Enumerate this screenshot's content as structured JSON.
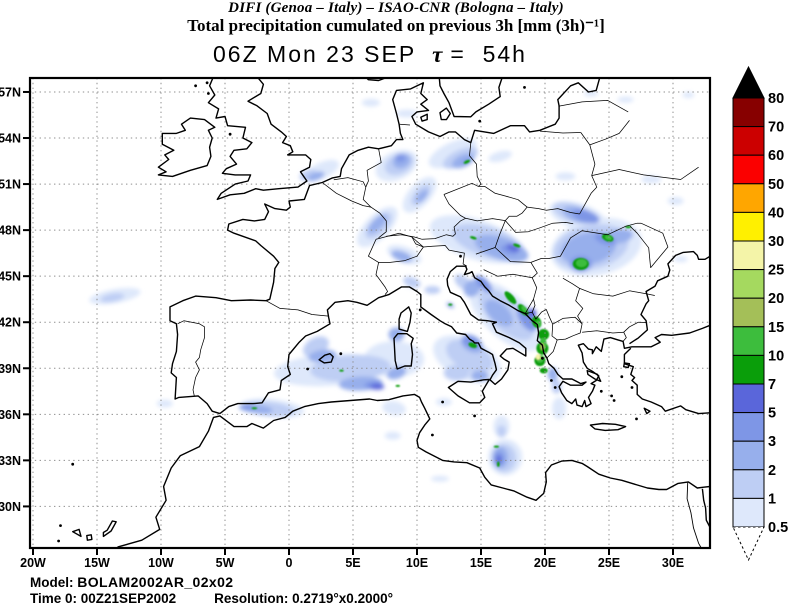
{
  "header": {
    "line1": "DIFI (Genoa – Italy)  –  ISAO-CNR (Bologna – Italy)",
    "line2": "Total precipitation cumulated on previous 3h [mm (3h)⁻¹]"
  },
  "title": {
    "datetime": "06Z Mon 23 SEP",
    "tau": "τ",
    "lead": "=  54h"
  },
  "footer": {
    "model_label": "Model: ",
    "model_value": "BOLAM2002AR_02x02",
    "time_label": "Time 0: ",
    "time_value": "00Z21SEP2002",
    "resolution_label": "Resolution: ",
    "resolution_value": "0.2719°x0.2000°"
  },
  "map": {
    "lat_ticks": [
      {
        "label": "57N",
        "lat": 57
      },
      {
        "label": "54N",
        "lat": 54
      },
      {
        "label": "51N",
        "lat": 51
      },
      {
        "label": "48N",
        "lat": 48
      },
      {
        "label": "45N",
        "lat": 45
      },
      {
        "label": "42N",
        "lat": 42
      },
      {
        "label": "39N",
        "lat": 39
      },
      {
        "label": "36N",
        "lat": 36
      },
      {
        "label": "33N",
        "lat": 33
      },
      {
        "label": "30N",
        "lat": 30
      }
    ],
    "lon_ticks": [
      {
        "label": "20W",
        "lon": -20
      },
      {
        "label": "15W",
        "lon": -15
      },
      {
        "label": "10W",
        "lon": -10
      },
      {
        "label": "5W",
        "lon": -5
      },
      {
        "label": "0",
        "lon": 0
      },
      {
        "label": "5E",
        "lon": 5
      },
      {
        "label": "10E",
        "lon": 10
      },
      {
        "label": "15E",
        "lon": 15
      },
      {
        "label": "20E",
        "lon": 20
      },
      {
        "label": "25E",
        "lon": 25
      },
      {
        "label": "30E",
        "lon": 30
      }
    ]
  },
  "colorbar": {
    "tick_labels": [
      "80",
      "70",
      "60",
      "50",
      "40",
      "30",
      "25",
      "20",
      "15",
      "10",
      "7",
      "5",
      "3",
      "2",
      "1",
      "0.5"
    ],
    "bands": [
      {
        "min": "70",
        "color": "#870000"
      },
      {
        "min": "60",
        "color": "#CC0000"
      },
      {
        "min": "50",
        "color": "#FB0000"
      },
      {
        "min": "40",
        "color": "#FFA600"
      },
      {
        "min": "30",
        "color": "#FFF000"
      },
      {
        "min": "25",
        "color": "#F4F4A8"
      },
      {
        "min": "20",
        "color": "#A5D95F"
      },
      {
        "min": "15",
        "color": "#A4BF58"
      },
      {
        "min": "10",
        "color": "#3DBD3D"
      },
      {
        "min": "7",
        "color": "#0A9E0A"
      },
      {
        "min": "5",
        "color": "#5A66DA"
      },
      {
        "min": "3",
        "color": "#7E96E6"
      },
      {
        "min": "2",
        "color": "#97AFEC"
      },
      {
        "min": "1",
        "color": "#BECEF4"
      },
      {
        "min": "0.5",
        "color": "#DEE8FB"
      }
    ],
    "above_color": "#000000",
    "below_color": "#FFFFFF"
  },
  "chart_data": {
    "type": "heatmap",
    "title": "06Z Mon 23 SEP  τ = 54h",
    "field": "Total precipitation cumulated on previous 3h",
    "units": "mm (3h)⁻¹",
    "model": "BOLAM2002AR_02x02",
    "init_time": "00Z21SEP2002",
    "valid_time": "06Z Mon 23 SEP",
    "lead_hours": 54,
    "resolution": "0.2719°x0.2000°",
    "extent": {
      "lon_min": -20,
      "lon_max": 32.9,
      "lat_min": 27.3,
      "lat_max": 57.9
    },
    "grid": {
      "lon_step_deg": 5,
      "lat_step_deg": 3,
      "style": "dotted"
    },
    "scale_levels_mm": [
      0.5,
      1,
      2,
      3,
      5,
      7,
      10,
      15,
      20,
      25,
      30,
      40,
      50,
      60,
      70,
      80
    ],
    "feature_format": [
      "lon",
      "lat",
      "rx_px",
      "ry_px",
      "rot_deg",
      "level_min_mm"
    ],
    "features": [
      [
        -13.6,
        43.7,
        26,
        7,
        -10,
        "0.5"
      ],
      [
        2.6,
        51.9,
        18,
        8,
        -25,
        "0.5"
      ],
      [
        8.4,
        52.2,
        22,
        14,
        -25,
        "0.5"
      ],
      [
        6.4,
        56.3,
        9,
        4,
        0,
        "0.5"
      ],
      [
        9.2,
        55.6,
        11,
        4,
        0,
        "0.5"
      ],
      [
        12.8,
        53.0,
        26,
        11,
        -25,
        "0.5"
      ],
      [
        16.5,
        52.8,
        12,
        5,
        -15,
        "0.5"
      ],
      [
        10.2,
        50.3,
        22,
        11,
        -48,
        "0.5"
      ],
      [
        6.9,
        48.2,
        26,
        12,
        -45,
        "0.5"
      ],
      [
        9.0,
        46.4,
        18,
        8,
        20,
        "0.5"
      ],
      [
        14.6,
        47.4,
        48,
        20,
        18,
        "0.5"
      ],
      [
        22.6,
        48.9,
        30,
        13,
        18,
        "0.5"
      ],
      [
        24.0,
        46.9,
        46,
        28,
        -12,
        "0.5"
      ],
      [
        28.3,
        51.3,
        10,
        4,
        0,
        "0.5"
      ],
      [
        30.2,
        49.9,
        8,
        4,
        0,
        "0.5"
      ],
      [
        21.6,
        51.5,
        10,
        4,
        0,
        "0.5"
      ],
      [
        26.3,
        56.5,
        8,
        3,
        0,
        "0.5"
      ],
      [
        23.6,
        56.9,
        7,
        3,
        0,
        "0.5"
      ],
      [
        31.2,
        56.8,
        6,
        3,
        0,
        "0.5"
      ],
      [
        17.0,
        42.4,
        46,
        22,
        42,
        "0.5"
      ],
      [
        13.9,
        39.6,
        36,
        20,
        25,
        "0.5"
      ],
      [
        3.2,
        38.9,
        56,
        16,
        -4,
        "0.5"
      ],
      [
        8.2,
        39.6,
        30,
        18,
        0,
        "0.5"
      ],
      [
        -1.3,
        36.4,
        32,
        9,
        6,
        "0.5"
      ],
      [
        -9.7,
        36.7,
        8,
        4,
        0,
        "0.5"
      ],
      [
        16.9,
        33.2,
        17,
        18,
        0,
        "0.5"
      ],
      [
        16.6,
        35.2,
        8,
        11,
        0,
        "0.5"
      ],
      [
        11.8,
        31.8,
        9,
        3,
        0,
        "0.5"
      ],
      [
        8.2,
        36.4,
        12,
        7,
        10,
        "0.5"
      ],
      [
        8.1,
        34.6,
        8,
        4,
        0,
        "0.5"
      ],
      [
        21.1,
        36.4,
        7,
        11,
        0,
        "0.5"
      ],
      [
        12.1,
        36.8,
        8,
        4,
        0,
        "0.5"
      ],
      [
        30.6,
        46.1,
        7,
        3,
        0,
        "0.5"
      ],
      [
        -13.8,
        43.6,
        12,
        4,
        -10,
        "1"
      ],
      [
        1.5,
        51.6,
        9,
        5,
        -20,
        "1"
      ],
      [
        8.6,
        52.3,
        15,
        10,
        -25,
        "1"
      ],
      [
        13.4,
        52.7,
        19,
        8,
        -25,
        "1"
      ],
      [
        10.3,
        50.3,
        13,
        6,
        -48,
        "1"
      ],
      [
        15.6,
        47.2,
        38,
        15,
        18,
        "1"
      ],
      [
        7.0,
        48.3,
        17,
        8,
        -45,
        "1"
      ],
      [
        23.6,
        46.9,
        38,
        22,
        -12,
        "1"
      ],
      [
        22.3,
        49.1,
        22,
        9,
        18,
        "1"
      ],
      [
        17.0,
        42.5,
        34,
        16,
        42,
        "1"
      ],
      [
        14.1,
        39.8,
        25,
        14,
        25,
        "1"
      ],
      [
        4.8,
        39.0,
        40,
        13,
        -4,
        "1"
      ],
      [
        2.1,
        40.4,
        14,
        9,
        -30,
        "1"
      ],
      [
        -1.6,
        36.35,
        26,
        7,
        6,
        "1"
      ],
      [
        16.8,
        33.15,
        12,
        14,
        0,
        "1"
      ],
      [
        16.6,
        34.9,
        4.5,
        6,
        0,
        "1"
      ],
      [
        13.1,
        38.7,
        13,
        8,
        0,
        "1"
      ],
      [
        11.2,
        44.1,
        8,
        4,
        0,
        "1"
      ],
      [
        9.6,
        44.6,
        9,
        5,
        20,
        "1"
      ],
      [
        13.6,
        44.6,
        10,
        6,
        40,
        "1"
      ],
      [
        20.9,
        37.8,
        5,
        7,
        0,
        "1"
      ],
      [
        2.1,
        51.5,
        9,
        4,
        -20,
        "2"
      ],
      [
        8.8,
        52.5,
        9,
        7,
        -25,
        "2"
      ],
      [
        13.6,
        52.5,
        12,
        6,
        -25,
        "2"
      ],
      [
        10.4,
        50.2,
        8,
        4,
        -48,
        "2"
      ],
      [
        6.9,
        48.4,
        12,
        5,
        -45,
        "2"
      ],
      [
        8.8,
        46.3,
        11,
        5,
        20,
        "2"
      ],
      [
        16.6,
        46.8,
        28,
        11,
        18,
        "2"
      ],
      [
        23.4,
        46.8,
        28,
        16,
        -12,
        "2"
      ],
      [
        22.6,
        49.0,
        16,
        7,
        18,
        "2"
      ],
      [
        16.4,
        42.6,
        17,
        9,
        42,
        "2"
      ],
      [
        14.3,
        44.2,
        8,
        9,
        40,
        "2"
      ],
      [
        14.3,
        40.6,
        12,
        8,
        30,
        "2"
      ],
      [
        14.9,
        38.5,
        9,
        5,
        0,
        "2"
      ],
      [
        2.6,
        39.8,
        14,
        6,
        -8,
        "2"
      ],
      [
        5.6,
        38.0,
        22,
        7,
        -3,
        "2"
      ],
      [
        8.4,
        38.7,
        10,
        6,
        -20,
        "2"
      ],
      [
        8.4,
        41.2,
        8,
        7,
        0,
        "2"
      ],
      [
        -2.6,
        36.35,
        17,
        4.5,
        6,
        "2"
      ],
      [
        16.5,
        33.2,
        8,
        11,
        0,
        "2"
      ],
      [
        20.6,
        38.6,
        5,
        7,
        0,
        "2"
      ],
      [
        25.8,
        47.6,
        14,
        7,
        -10,
        "2"
      ],
      [
        8.7,
        52.7,
        5,
        4,
        0,
        "3"
      ],
      [
        17.2,
        46.7,
        9,
        4,
        18,
        "3"
      ],
      [
        24.7,
        47.4,
        11,
        5,
        20,
        "3"
      ],
      [
        22.8,
        45.8,
        11,
        8,
        0,
        "3"
      ],
      [
        23.2,
        48.9,
        14,
        6,
        18,
        "3"
      ],
      [
        15.2,
        44.5,
        11,
        5,
        45,
        "3"
      ],
      [
        18.6,
        42.2,
        14,
        7,
        55,
        "3"
      ],
      [
        14.2,
        40.7,
        9,
        6,
        30,
        "3"
      ],
      [
        6.6,
        37.9,
        9,
        4,
        -3,
        "3"
      ],
      [
        -3.2,
        36.5,
        7,
        2.5,
        6,
        "3"
      ],
      [
        16.4,
        33.1,
        5,
        7,
        0,
        "3"
      ],
      [
        12.6,
        43.1,
        4,
        2,
        30,
        "3"
      ],
      [
        13.9,
        52.45,
        5,
        2.5,
        -25,
        "3"
      ],
      [
        17.5,
        46.85,
        7,
        3,
        18,
        "5"
      ],
      [
        19.0,
        42.6,
        5,
        4,
        60,
        "5"
      ],
      [
        6.9,
        37.8,
        7,
        3,
        0,
        "5"
      ],
      [
        16.4,
        33.05,
        2.5,
        4,
        0,
        "5"
      ],
      [
        13.9,
        52.45,
        3.5,
        1.4,
        -25,
        "7"
      ],
      [
        14.4,
        47.5,
        3.5,
        1.4,
        18,
        "7"
      ],
      [
        17.8,
        47.0,
        3.8,
        1.5,
        18,
        "7"
      ],
      [
        24.9,
        47.5,
        6,
        3.5,
        20,
        "7"
      ],
      [
        22.8,
        45.8,
        8,
        6,
        0,
        "7"
      ],
      [
        26.5,
        48.2,
        3,
        1.3,
        0,
        "7"
      ],
      [
        17.3,
        43.6,
        8,
        3.2,
        48,
        "7"
      ],
      [
        18.3,
        42.8,
        7,
        3.5,
        50,
        "7"
      ],
      [
        19.35,
        42.0,
        6,
        4.5,
        65,
        "7"
      ],
      [
        19.9,
        41.2,
        5.5,
        5.5,
        0,
        "7"
      ],
      [
        19.8,
        40.3,
        6,
        6.5,
        0,
        "7"
      ],
      [
        19.6,
        39.5,
        5.5,
        5.5,
        0,
        "7"
      ],
      [
        19.9,
        38.85,
        4,
        2.8,
        0,
        "7"
      ],
      [
        14.35,
        40.5,
        4.5,
        2.5,
        20,
        "7"
      ],
      [
        12.6,
        43.15,
        2,
        1,
        0,
        "7"
      ],
      [
        4.1,
        38.85,
        2.2,
        1,
        0,
        "7"
      ],
      [
        8.5,
        37.85,
        2.2,
        1,
        0,
        "7"
      ],
      [
        -2.7,
        36.4,
        2.8,
        1,
        0,
        "7"
      ],
      [
        16.2,
        33.9,
        2.6,
        1,
        0,
        "7"
      ],
      [
        16.35,
        32.75,
        1.3,
        2.6,
        0,
        "7"
      ],
      [
        22.85,
        45.85,
        5.5,
        4,
        0,
        "10"
      ],
      [
        24.95,
        47.5,
        3.5,
        2,
        20,
        "10"
      ],
      [
        18.4,
        42.85,
        4,
        2,
        50,
        "10"
      ],
      [
        19.5,
        41.9,
        3.5,
        2.5,
        65,
        "10"
      ],
      [
        19.85,
        40.6,
        3.5,
        6,
        0,
        "10"
      ],
      [
        19.6,
        39.6,
        3.5,
        3.5,
        0,
        "10"
      ],
      [
        19.8,
        40.4,
        2.2,
        3.5,
        0,
        "15"
      ],
      [
        19.5,
        39.7,
        2.5,
        2.5,
        0,
        "15"
      ],
      [
        19.45,
        39.75,
        2.2,
        2.8,
        0,
        "25"
      ]
    ]
  }
}
